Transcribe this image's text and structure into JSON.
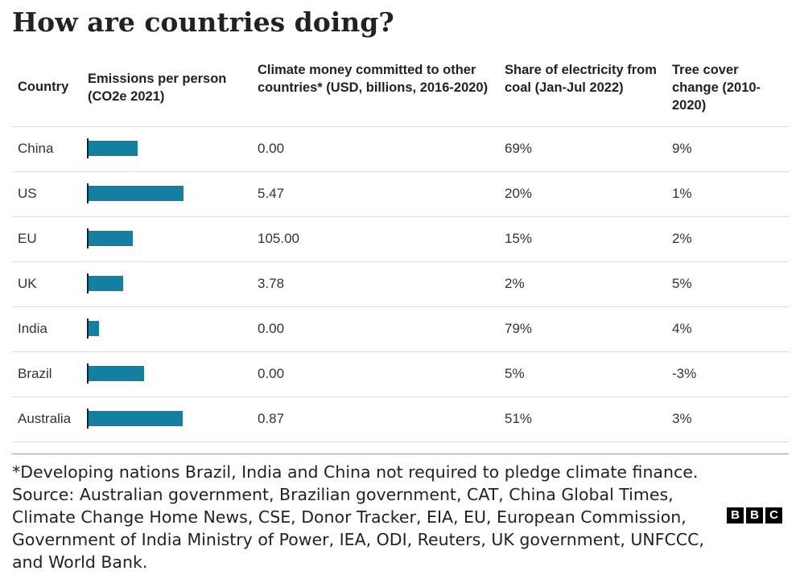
{
  "title": "How are countries doing?",
  "headers": {
    "country": "Country",
    "emissions": "Emissions per person (CO2e 2021)",
    "money": "Climate money committed to other countries* (USD, billions, 2016-2020)",
    "coal": "Share of electricity from coal (Jan-Jul 2022)",
    "tree": "Tree cover change (2010-2020)"
  },
  "chart_data": {
    "type": "table",
    "title": "How are countries doing?",
    "columns": [
      "Country",
      "Emissions per person (CO2e 2021)",
      "Climate money committed to other countries* (USD, billions, 2016-2020)",
      "Share of electricity from coal (Jan-Jul 2022)",
      "Tree cover change (2010-2020)"
    ],
    "bar_color": "#1380a1",
    "emissions_max": 20,
    "rows": [
      {
        "country": "China",
        "emissions": 8.7,
        "money": "0.00",
        "coal": "69%",
        "tree": "9%"
      },
      {
        "country": "US",
        "emissions": 16.8,
        "money": "5.47",
        "coal": "20%",
        "tree": "1%"
      },
      {
        "country": "EU",
        "emissions": 7.8,
        "money": "105.00",
        "coal": "15%",
        "tree": "2%"
      },
      {
        "country": "UK",
        "emissions": 6.2,
        "money": "3.78",
        "coal": "2%",
        "tree": "5%"
      },
      {
        "country": "India",
        "emissions": 1.9,
        "money": "0.00",
        "coal": "79%",
        "tree": "4%"
      },
      {
        "country": "Brazil",
        "emissions": 9.8,
        "money": "0.00",
        "coal": "5%",
        "tree": "-3%"
      },
      {
        "country": "Australia",
        "emissions": 16.7,
        "money": "0.87",
        "coal": "51%",
        "tree": "3%"
      }
    ]
  },
  "footnote": "*Developing nations Brazil, India and China not required to pledge climate finance. Source: Australian government, Brazilian government, CAT, China Global Times, Climate Change Home News, CSE, Donor Tracker, EIA, EU, European Commission, Government of India Ministry of Power, IEA, ODI, Reuters, UK government, UNFCCC, and World Bank.",
  "logo": [
    "B",
    "B",
    "C"
  ]
}
